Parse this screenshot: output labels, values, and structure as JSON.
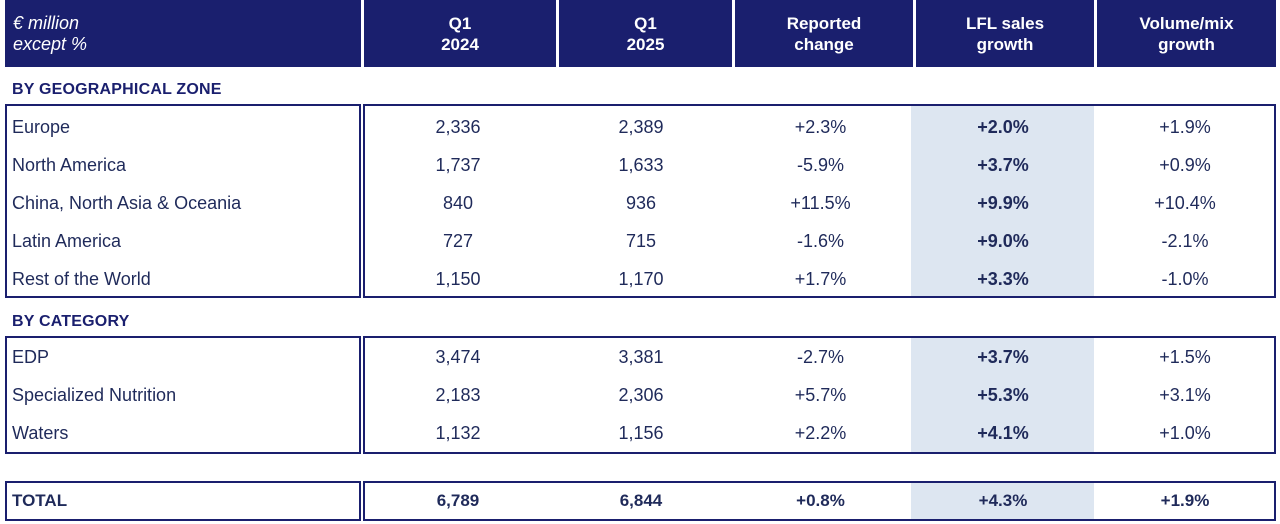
{
  "header": {
    "col0": [
      "€ million",
      "except %"
    ],
    "col1": [
      "Q1",
      "2024"
    ],
    "col2": [
      "Q1",
      "2025"
    ],
    "col3": [
      "Reported",
      "change"
    ],
    "col4": [
      "LFL sales",
      "growth"
    ],
    "col5": [
      "Volume/mix",
      "growth"
    ]
  },
  "sections": {
    "geo_title": "BY GEOGRAPHICAL ZONE",
    "cat_title": "BY CATEGORY"
  },
  "geo_rows": [
    {
      "label": "Europe",
      "q1_2024": "2,336",
      "q1_2025": "2,389",
      "reported": "+2.3%",
      "lfl": "+2.0%",
      "volmix": "+1.9%"
    },
    {
      "label": "North America",
      "q1_2024": "1,737",
      "q1_2025": "1,633",
      "reported": "-5.9%",
      "lfl": "+3.7%",
      "volmix": "+0.9%"
    },
    {
      "label": "China, North Asia & Oceania",
      "q1_2024": "840",
      "q1_2025": "936",
      "reported": "+11.5%",
      "lfl": "+9.9%",
      "volmix": "+10.4%"
    },
    {
      "label": "Latin America",
      "q1_2024": "727",
      "q1_2025": "715",
      "reported": "-1.6%",
      "lfl": "+9.0%",
      "volmix": "-2.1%"
    },
    {
      "label": "Rest of the World",
      "q1_2024": "1,150",
      "q1_2025": "1,170",
      "reported": "+1.7%",
      "lfl": "+3.3%",
      "volmix": "-1.0%"
    }
  ],
  "cat_rows": [
    {
      "label": "EDP",
      "q1_2024": "3,474",
      "q1_2025": "3,381",
      "reported": "-2.7%",
      "lfl": "+3.7%",
      "volmix": "+1.5%"
    },
    {
      "label": "Specialized Nutrition",
      "q1_2024": "2,183",
      "q1_2025": "2,306",
      "reported": "+5.7%",
      "lfl": "+5.3%",
      "volmix": "+3.1%"
    },
    {
      "label": "Waters",
      "q1_2024": "1,132",
      "q1_2025": "1,156",
      "reported": "+2.2%",
      "lfl": "+4.1%",
      "volmix": "+1.0%"
    }
  ],
  "total": {
    "label": "TOTAL",
    "q1_2024": "6,789",
    "q1_2025": "6,844",
    "reported": "+0.8%",
    "lfl": "+4.3%",
    "volmix": "+1.9%"
  },
  "colors": {
    "header_bg": "#1a1f6e",
    "highlight": "#dde6f1",
    "text": "#1f2a5a"
  }
}
